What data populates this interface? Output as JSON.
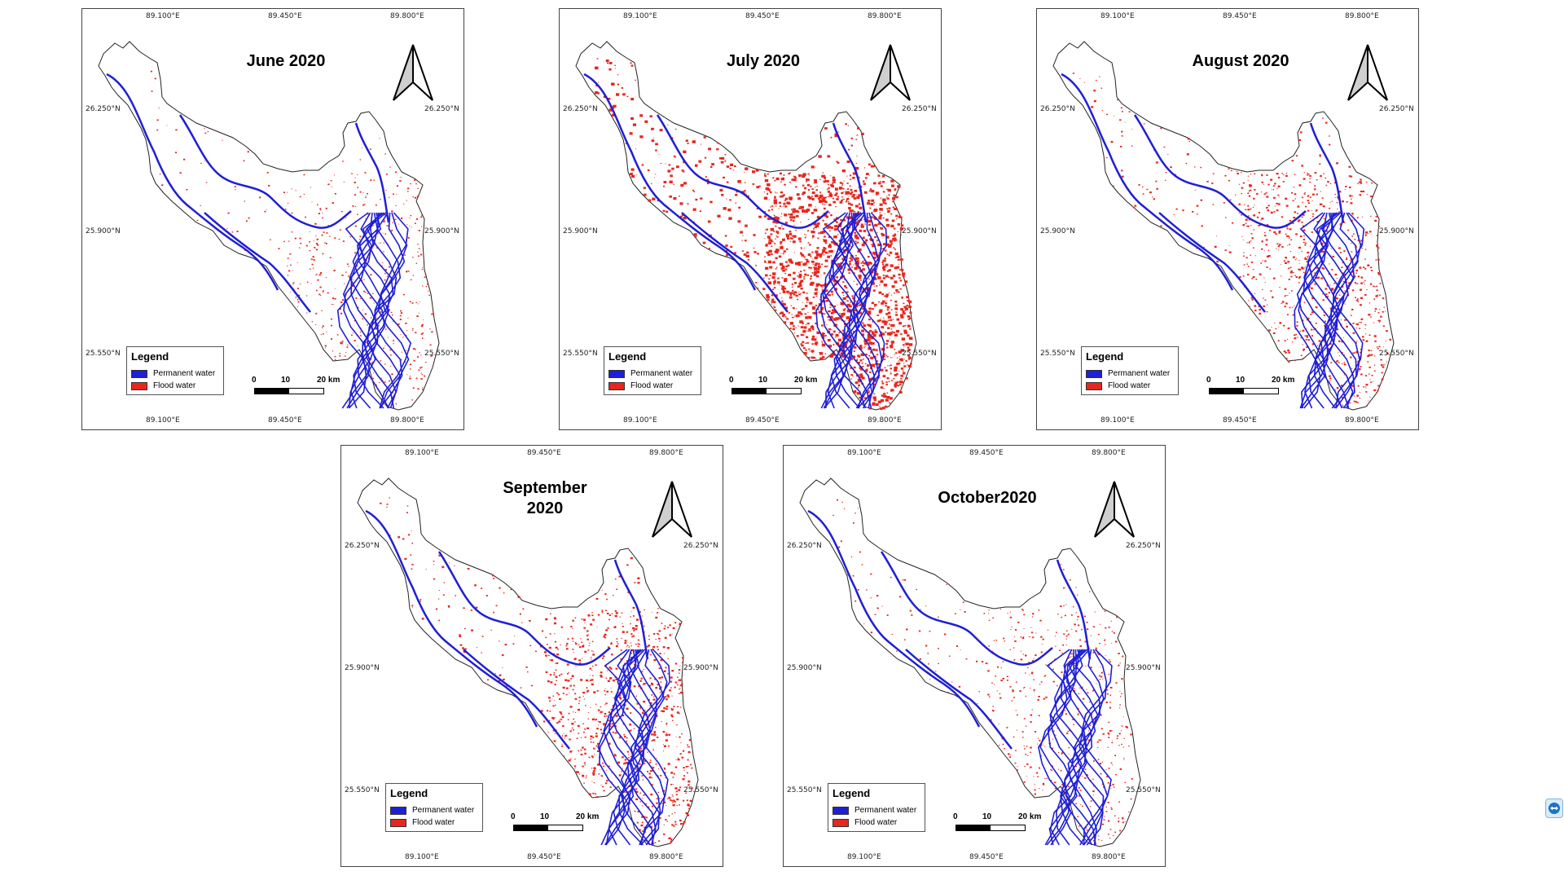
{
  "panels": [
    {
      "title": "June 2020"
    },
    {
      "title": "July 2020"
    },
    {
      "title": "August 2020"
    },
    {
      "title": "September 2020"
    },
    {
      "title": "October2020"
    }
  ],
  "axes": {
    "lon_labels": [
      "89.100°E",
      "89.450°E",
      "89.800°E"
    ],
    "lat_labels": [
      "26.250°N",
      "25.900°N",
      "25.550°N"
    ]
  },
  "legend": {
    "title": "Legend",
    "items": [
      {
        "label": "Permanent water",
        "color": "#1f1fd6"
      },
      {
        "label": "Flood water",
        "color": "#e8261c"
      }
    ]
  },
  "scalebar": {
    "labels": [
      "0",
      "10",
      "20 km"
    ]
  },
  "colors": {
    "permanent_water": "#1f1fd6",
    "flood_water": "#e8261c",
    "boundary": "#222222",
    "north_arrow_fill": "#cfcfcf"
  },
  "flood_intensity": {
    "June 2020": 0.15,
    "July 2020": 1.0,
    "August 2020": 0.4,
    "September 2020": 0.45,
    "October2020": 0.2
  }
}
